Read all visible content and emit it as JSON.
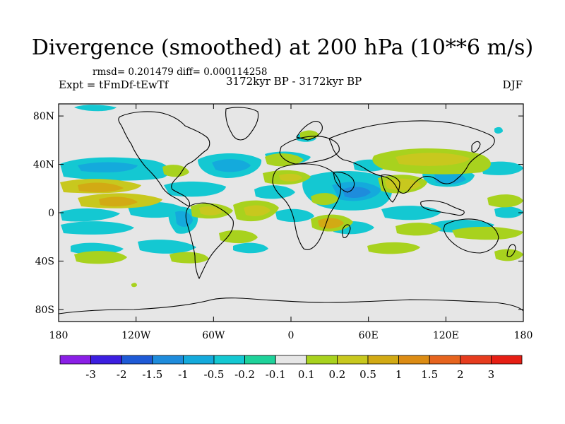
{
  "title": "Divergence (smoothed) at 200 hPa (10**6 m/s)",
  "stats_text": "rmsd= 0.201479 diff= 0.000114258",
  "experiment": "Expt = tFmDf-tEwTf",
  "period": "3172kyr BP - 3172kyr BP",
  "season": "DJF",
  "lat_ticks": [
    "80N",
    "40N",
    "0",
    "40S",
    "80S"
  ],
  "lat_values": [
    80,
    40,
    0,
    -40,
    -80
  ],
  "lon_ticks": [
    "180",
    "120W",
    "60W",
    "0",
    "60E",
    "120E",
    "180"
  ],
  "lon_values": [
    -180,
    -120,
    -60,
    0,
    60,
    120,
    180
  ],
  "colorbar": {
    "labels": [
      "-3",
      "-2",
      "-1.5",
      "-1",
      "-0.5",
      "-0.2",
      "-0.1",
      "0.1",
      "0.2",
      "0.5",
      "1",
      "1.5",
      "2",
      "3"
    ],
    "colors": [
      "#8a1fe6",
      "#3c1ee0",
      "#1e5ad6",
      "#1e8cdc",
      "#14aadc",
      "#14c8d2",
      "#1ed29a",
      "#e6e6e6",
      "#a8d21e",
      "#c8c81e",
      "#d2aa14",
      "#dc8c14",
      "#e6641e",
      "#e63c1e",
      "#e61e14"
    ]
  },
  "map_colors": {
    "background": "#e6e6e6",
    "neg_light": "#14c8d2",
    "neg_mid": "#14aadc",
    "neg_strong": "#1e8cdc",
    "pos_light": "#a8d21e",
    "pos_mid": "#c8c81e",
    "pos_strong": "#d2aa14"
  }
}
